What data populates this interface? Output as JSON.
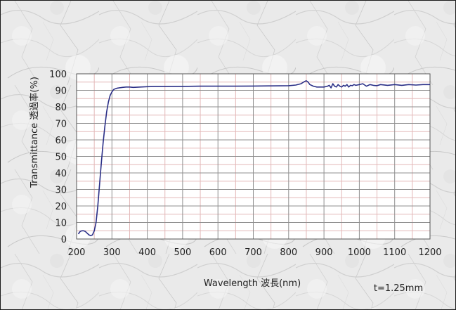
{
  "chart_data": {
    "type": "line",
    "title": "",
    "xlabel": "Wavelength 波長(nm)",
    "ylabel": "Transmittance 透過率(%)",
    "annotation": "t=1.25mm",
    "xlim": [
      200,
      1200
    ],
    "ylim": [
      0,
      100
    ],
    "x_ticks": [
      200,
      300,
      400,
      500,
      600,
      700,
      800,
      900,
      1000,
      1100,
      1200
    ],
    "y_ticks": [
      0,
      10,
      20,
      30,
      40,
      50,
      60,
      70,
      80,
      90,
      100
    ],
    "grid": true,
    "legend": "none",
    "colors": {
      "series": "#2b2f87",
      "major_grid": "#8f8f8f",
      "minor_grid": "#e3b8b8",
      "plot_bg": "#ffffff",
      "texture": "#d9d9d9"
    },
    "series": [
      {
        "x": [
          205,
          210,
          215,
          220,
          225,
          230,
          235,
          240,
          245,
          250,
          255,
          260,
          265,
          270,
          275,
          280,
          285,
          290,
          295,
          300,
          305,
          310,
          315,
          320,
          330,
          340,
          350,
          360,
          380,
          400,
          420,
          450,
          500,
          550,
          600,
          650,
          700,
          750,
          800,
          820,
          835,
          845,
          850,
          855,
          860,
          870,
          880,
          900,
          910,
          915,
          920,
          925,
          930,
          935,
          940,
          945,
          950,
          955,
          960,
          965,
          970,
          975,
          980,
          985,
          990,
          1000,
          1010,
          1020,
          1030,
          1040,
          1050,
          1060,
          1080,
          1100,
          1120,
          1140,
          1160,
          1180,
          1200
        ],
        "y": [
          3,
          4.5,
          5,
          5,
          4.5,
          3.5,
          2.5,
          2,
          2.5,
          5,
          10,
          20,
          33,
          46,
          58,
          68,
          77,
          83,
          87,
          89,
          90.5,
          91,
          91.3,
          91.5,
          91.8,
          92,
          92,
          91.8,
          92,
          92.2,
          92.3,
          92.3,
          92.4,
          92.5,
          92.5,
          92.5,
          92.6,
          92.7,
          92.8,
          93.2,
          94,
          95.3,
          95.8,
          95,
          93.5,
          92.5,
          92,
          92,
          92.5,
          93,
          91.5,
          94,
          92.5,
          92,
          93.5,
          92.5,
          92,
          93,
          92.5,
          93.5,
          92,
          93,
          92.8,
          93.5,
          93,
          93.5,
          94,
          92.5,
          93.5,
          93,
          92.8,
          93.5,
          93,
          93.5,
          93,
          93.5,
          93.2,
          93.5,
          93.5
        ]
      }
    ]
  }
}
